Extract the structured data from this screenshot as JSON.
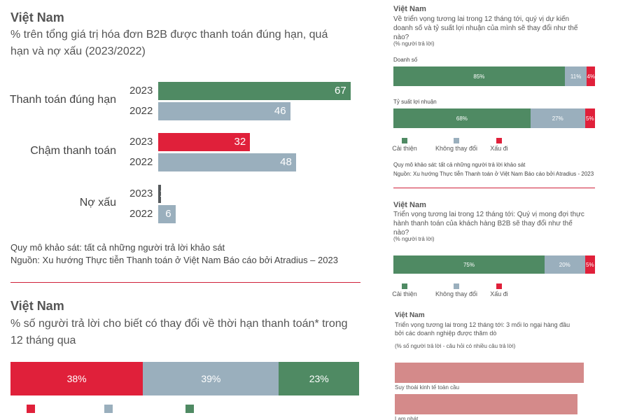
{
  "chart_data": [
    {
      "type": "bar",
      "title": "Việt Nam",
      "subtitle": "% trên tổng giá trị hóa đơn B2B được thanh toán đúng hạn, quá hạn và nợ xấu (2023/2022)",
      "categories": [
        "Thanh toán đúng hạn",
        "Chậm thanh toán",
        "Nợ xấu"
      ],
      "series": [
        {
          "name": "2023",
          "values": [
            67,
            32,
            1
          ],
          "colors": [
            "#4f8a63",
            "#e0203a",
            "#55595c"
          ]
        },
        {
          "name": "2022",
          "values": [
            46,
            48,
            6
          ],
          "color": "#9aafbd"
        }
      ],
      "notes": [
        "Quy mô khảo sát: tất cả những người trả lời khảo sát",
        "Nguồn: Xu hướng Thực tiễn Thanh toán ở Việt Nam Báo cáo bởi Atradius – 2023"
      ]
    },
    {
      "type": "stacked_bar",
      "title": "Việt Nam",
      "subtitle": "% số người trả lời cho biết có thay đổi về thời hạn thanh toán* trong 12 tháng qua",
      "series": [
        {
          "color": "#e0203a",
          "values": [
            38
          ],
          "value_labels": [
            "38%"
          ]
        },
        {
          "color": "#9aafbd",
          "values": [
            39
          ],
          "value_labels": [
            "39%"
          ]
        },
        {
          "color": "#4f8a63",
          "values": [
            23
          ],
          "value_labels": [
            "23%"
          ]
        }
      ]
    },
    {
      "type": "stacked_bar",
      "title": "Việt Nam",
      "subtitle": "Về triển vọng tương lai trong 12 tháng tới, quý vị dự kiến doanh số và tỷ suất lợi nhuận của mình sẽ thay đổi như thế nào?",
      "note": "(% người trả lời)",
      "categories": [
        "Doanh số",
        "Tỷ suất lợi nhuận"
      ],
      "series": [
        {
          "name": "Cải thiện",
          "color": "#4f8a63",
          "values": [
            85,
            68
          ],
          "value_labels": [
            "85%",
            "68%"
          ]
        },
        {
          "name": "Không thay đổi",
          "color": "#9aafbd",
          "values": [
            11,
            27
          ],
          "value_labels": [
            "11%",
            "27%"
          ]
        },
        {
          "name": "Xấu đi",
          "color": "#e0203a",
          "values": [
            4,
            5
          ],
          "value_labels": [
            "4%",
            "5%"
          ]
        }
      ],
      "notes": [
        "Quy mô khảo sát: tất cả những người trả lời khảo sát",
        "Nguồn: Xu hướng Thực tiễn Thanh toán ở Việt Nam Báo cáo bởi Atradius - 2023"
      ]
    },
    {
      "type": "stacked_bar",
      "title": "Việt Nam",
      "subtitle": "Triển vọng tương lai trong 12 tháng tới: Quý vị mong đợi thực hành thanh toán của khách hàng B2B sẽ thay đổi như thế nào?",
      "note": "(% người trả lời)",
      "series": [
        {
          "name": "Cải thiện",
          "color": "#4f8a63",
          "values": [
            75
          ],
          "value_labels": [
            "75%"
          ]
        },
        {
          "name": "Không thay đổi",
          "color": "#9aafbd",
          "values": [
            20
          ],
          "value_labels": [
            "20%"
          ]
        },
        {
          "name": "Xấu đi",
          "color": "#e0203a",
          "values": [
            5
          ],
          "value_labels": [
            "5%"
          ]
        }
      ]
    },
    {
      "type": "bar",
      "title": "Việt Nam",
      "subtitle": "Triển vọng tương lai trong 12 tháng tới: 3 mối lo ngại hàng đầu bởi các doanh nghiệp được thăm dò",
      "note": "(% số người trả lời - câu hỏi có nhiều câu trả lời)",
      "categories": [
        "Suy thoái kinh tế toàn cầu",
        "Lạm phát"
      ],
      "values": [
        47,
        45.5
      ],
      "color": "#d48a8a"
    }
  ]
}
